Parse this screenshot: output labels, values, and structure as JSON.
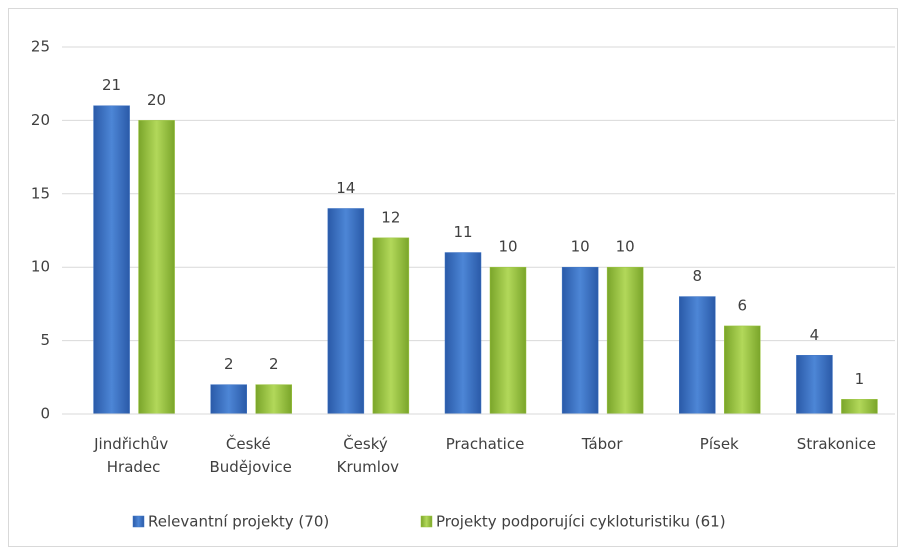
{
  "chart_data": {
    "type": "bar",
    "categories": [
      "Jindřichův Hradec",
      "České Budějovice",
      "Český Krumlov",
      "Prachatice",
      "Tábor",
      "Písek",
      "Strakonice"
    ],
    "series": [
      {
        "name": "Relevantní projekty (70)",
        "color": "#3f74c4",
        "values": [
          21,
          2,
          14,
          11,
          10,
          8,
          4
        ]
      },
      {
        "name": "Projekty podporujíci cykloturistiku (61)",
        "color": "#9bc43f",
        "values": [
          20,
          2,
          12,
          10,
          10,
          6,
          1
        ]
      }
    ],
    "ylim": [
      0,
      25
    ],
    "yticks": [
      0,
      5,
      10,
      15,
      20,
      25
    ],
    "grid": true,
    "legend": "bottom"
  }
}
